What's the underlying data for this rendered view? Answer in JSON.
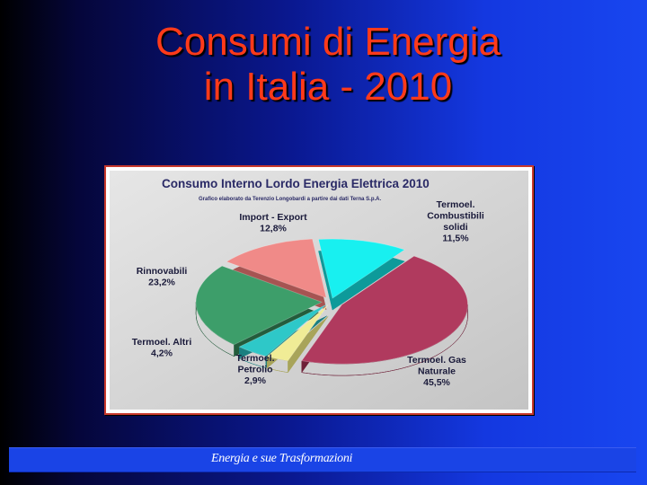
{
  "slide": {
    "title_line1": "Consumi di Energia",
    "title_line2": "in Italia - 2010",
    "footer": "Energia e sue Trasformazioni"
  },
  "chart_data": {
    "type": "pie",
    "title": "Consumo Interno Lordo Energia Elettrica 2010",
    "subtitle": "Grafico elaborato da Terenzio Longobardi a partire dai dati Terna S.p.A.",
    "slices": [
      {
        "label": [
          "Termoel. Gas",
          "Naturale"
        ],
        "value_label": "45,5%",
        "value": 45.5,
        "color": "#b03a5e",
        "side": "#6e2038"
      },
      {
        "label": [
          "Termoel.",
          "Petrolio"
        ],
        "value_label": "2,9%",
        "value": 2.9,
        "color": "#f0ec96",
        "side": "#a8a45a"
      },
      {
        "label": [
          "Termoel. Altri"
        ],
        "value_label": "4,2%",
        "value": 4.2,
        "color": "#2ec8c8",
        "side": "#1a7f80"
      },
      {
        "label": [
          "Rinnovabili"
        ],
        "value_label": "23,2%",
        "value": 23.2,
        "color": "#3d9e6a",
        "side": "#235c3c"
      },
      {
        "label": [
          "Import - Export"
        ],
        "value_label": "12,8%",
        "value": 12.8,
        "color": "#f08a88",
        "side": "#a65452"
      },
      {
        "label": [
          "Termoel.",
          "Combustibili",
          "solidi"
        ],
        "value_label": "11,5%",
        "value": 11.5,
        "color": "#18f0f0",
        "side": "#0d9a9a"
      }
    ]
  }
}
